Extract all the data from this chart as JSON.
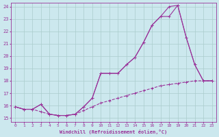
{
  "xlabel": "Windchill (Refroidissement éolien,°C)",
  "bg_color": "#cce8ee",
  "line_color": "#993399",
  "grid_color": "#aacccc",
  "xlim": [
    -0.5,
    23.5
  ],
  "ylim": [
    14.7,
    24.3
  ],
  "yticks": [
    15,
    16,
    17,
    18,
    19,
    20,
    21,
    22,
    23,
    24
  ],
  "xticks": [
    0,
    1,
    2,
    3,
    4,
    5,
    6,
    7,
    8,
    9,
    10,
    11,
    12,
    13,
    14,
    15,
    16,
    17,
    18,
    19,
    20,
    21,
    22,
    23
  ],
  "series1_x": [
    0,
    1,
    2,
    3,
    4,
    5,
    6,
    7,
    8,
    9,
    10,
    11,
    12,
    13,
    14,
    15,
    16,
    17,
    18,
    19,
    20,
    21,
    22,
    23
  ],
  "series1_y": [
    15.9,
    15.7,
    15.7,
    16.1,
    15.3,
    15.2,
    15.2,
    15.3,
    15.9,
    16.6,
    18.6,
    18.6,
    18.6,
    19.3,
    19.9,
    21.1,
    22.5,
    23.2,
    24.0,
    24.1,
    21.5,
    19.3,
    18.0,
    18.0
  ],
  "series2_x": [
    0,
    1,
    2,
    3,
    4,
    5,
    6,
    7,
    8,
    9,
    10,
    11,
    12,
    13,
    14,
    15,
    16,
    17,
    18,
    19,
    20,
    21,
    22,
    23
  ],
  "series2_y": [
    15.9,
    15.7,
    15.7,
    16.1,
    15.3,
    15.2,
    15.2,
    15.3,
    15.9,
    16.6,
    18.6,
    18.6,
    18.6,
    19.3,
    19.9,
    21.1,
    22.5,
    23.2,
    23.2,
    24.1,
    21.5,
    19.3,
    18.0,
    18.0
  ],
  "series3_x": [
    0,
    1,
    2,
    3,
    4,
    5,
    6,
    7,
    8,
    9,
    10,
    11,
    12,
    13,
    14,
    15,
    16,
    17,
    18,
    19,
    20,
    21,
    22,
    23
  ],
  "series3_y": [
    15.9,
    15.7,
    15.7,
    15.5,
    15.3,
    15.2,
    15.2,
    15.3,
    15.6,
    15.9,
    16.2,
    16.4,
    16.6,
    16.8,
    17.0,
    17.2,
    17.4,
    17.6,
    17.7,
    17.8,
    17.9,
    18.0,
    18.0,
    18.0
  ]
}
